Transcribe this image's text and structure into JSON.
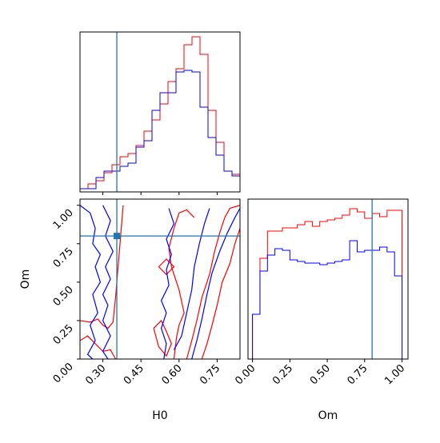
{
  "chart_data": [
    {
      "type": "line",
      "panel": "H0 marginal histogram (step)",
      "xlim": [
        0.21,
        0.84
      ],
      "x_bins": [
        0.21,
        0.2415,
        0.273,
        0.3045,
        0.336,
        0.3675,
        0.399,
        0.4305,
        0.462,
        0.4935,
        0.525,
        0.5565,
        0.588,
        0.6195,
        0.651,
        0.6825,
        0.714,
        0.7455,
        0.777,
        0.8085,
        0.84
      ],
      "series": [
        {
          "color": "#ff0000",
          "values": [
            0.02,
            0.05,
            0.07,
            0.12,
            0.17,
            0.22,
            0.24,
            0.29,
            0.38,
            0.45,
            0.55,
            0.69,
            0.77,
            0.92,
            0.97,
            0.86,
            0.51,
            0.31,
            0.13,
            0.11
          ]
        },
        {
          "color": "#0000ff",
          "values": [
            0.02,
            0.02,
            0.09,
            0.13,
            0.13,
            0.16,
            0.18,
            0.28,
            0.32,
            0.51,
            0.62,
            0.62,
            0.75,
            0.76,
            0.75,
            0.53,
            0.34,
            0.23,
            0.13,
            0.1
          ]
        }
      ],
      "truth_line_x": 0.355,
      "grid": false
    },
    {
      "type": "line",
      "panel": "Om marginal histogram (step)",
      "xlim": [
        -0.03,
        1.04
      ],
      "xticks": [
        "0.00",
        "0.25",
        "0.50",
        "0.75",
        "1.00"
      ],
      "x_bins": [
        0.0,
        0.05,
        0.1,
        0.15,
        0.2,
        0.25,
        0.3,
        0.35,
        0.4,
        0.45,
        0.5,
        0.55,
        0.6,
        0.65,
        0.7,
        0.75,
        0.8,
        0.85,
        0.9,
        0.95,
        1.0
      ],
      "series": [
        {
          "color": "#ff0000",
          "values": [
            0.28,
            0.63,
            0.8,
            0.8,
            0.82,
            0.82,
            0.84,
            0.86,
            0.83,
            0.86,
            0.87,
            0.88,
            0.9,
            0.94,
            0.92,
            0.88,
            0.91,
            0.89,
            0.93,
            0.93
          ]
        },
        {
          "color": "#0000ff",
          "values": [
            0.28,
            0.55,
            0.65,
            0.69,
            0.68,
            0.62,
            0.61,
            0.6,
            0.6,
            0.59,
            0.6,
            0.61,
            0.62,
            0.74,
            0.67,
            0.68,
            0.68,
            0.7,
            0.67,
            0.52
          ]
        }
      ],
      "truth_line_x": 0.8,
      "xlabel": "Om",
      "grid": false
    },
    {
      "type": "scatter",
      "panel": "H0 vs Om 2D contour",
      "xlim": [
        0.21,
        0.84
      ],
      "ylim": [
        0.0,
        1.04
      ],
      "xticks": [
        "0.30",
        "0.45",
        "0.60",
        "0.75"
      ],
      "yticks": [
        "0.00",
        "0.25",
        "0.50",
        "0.75",
        "1.00"
      ],
      "xlabel": "H0",
      "ylabel": "Om",
      "truth_point": {
        "x": 0.355,
        "y": 0.8
      },
      "contours": [
        {
          "color": "#ff0000",
          "points": [
            [
              0.21,
              0.25
            ],
            [
              0.25,
              0.24
            ],
            [
              0.28,
              0.26
            ],
            [
              0.3,
              0.22
            ],
            [
              0.32,
              0.2
            ],
            [
              0.34,
              0.24
            ],
            [
              0.35,
              0.4
            ],
            [
              0.36,
              0.6
            ],
            [
              0.37,
              0.8
            ],
            [
              0.38,
              1.0
            ]
          ]
        },
        {
          "color": "#ff0000",
          "points": [
            [
              0.21,
              0.12
            ],
            [
              0.24,
              0.15
            ],
            [
              0.27,
              0.1
            ],
            [
              0.3,
              0.05
            ],
            [
              0.33,
              0.06
            ],
            [
              0.35,
              0.0
            ]
          ]
        },
        {
          "color": "#ff0000",
          "points": [
            [
              0.58,
              0.0
            ],
            [
              0.59,
              0.14
            ],
            [
              0.6,
              0.22
            ],
            [
              0.62,
              0.3
            ],
            [
              0.6,
              0.45
            ],
            [
              0.57,
              0.6
            ],
            [
              0.56,
              0.72
            ],
            [
              0.58,
              0.85
            ],
            [
              0.6,
              0.95
            ],
            [
              0.63,
              0.97
            ],
            [
              0.66,
              0.92
            ]
          ]
        },
        {
          "color": "#ff0000",
          "points": [
            [
              0.63,
              0.0
            ],
            [
              0.65,
              0.12
            ],
            [
              0.67,
              0.25
            ],
            [
              0.69,
              0.4
            ],
            [
              0.72,
              0.55
            ],
            [
              0.74,
              0.7
            ],
            [
              0.76,
              0.82
            ],
            [
              0.78,
              0.92
            ],
            [
              0.8,
              0.98
            ],
            [
              0.84,
              1.0
            ]
          ]
        },
        {
          "color": "#ff0000",
          "points": [
            [
              0.69,
              0.0
            ],
            [
              0.71,
              0.1
            ],
            [
              0.73,
              0.22
            ],
            [
              0.75,
              0.35
            ],
            [
              0.77,
              0.5
            ],
            [
              0.8,
              0.62
            ],
            [
              0.82,
              0.75
            ],
            [
              0.84,
              0.85
            ]
          ]
        },
        {
          "color": "#ff0000",
          "points": [
            [
              0.5,
              0.2
            ],
            [
              0.53,
              0.25
            ],
            [
              0.55,
              0.18
            ],
            [
              0.57,
              0.1
            ],
            [
              0.55,
              0.02
            ],
            [
              0.52,
              0.08
            ],
            [
              0.5,
              0.2
            ]
          ]
        },
        {
          "color": "#ff0000",
          "points": [
            [
              0.52,
              0.6
            ],
            [
              0.55,
              0.65
            ],
            [
              0.58,
              0.6
            ],
            [
              0.55,
              0.55
            ],
            [
              0.52,
              0.6
            ]
          ]
        },
        {
          "color": "#0000ff",
          "points": [
            [
              0.21,
              1.0
            ],
            [
              0.25,
              0.95
            ],
            [
              0.27,
              0.85
            ],
            [
              0.26,
              0.75
            ],
            [
              0.29,
              0.68
            ],
            [
              0.27,
              0.6
            ],
            [
              0.29,
              0.5
            ],
            [
              0.26,
              0.42
            ],
            [
              0.28,
              0.3
            ],
            [
              0.25,
              0.22
            ],
            [
              0.27,
              0.12
            ],
            [
              0.24,
              0.03
            ],
            [
              0.26,
              0.0
            ]
          ]
        },
        {
          "color": "#0000ff",
          "points": [
            [
              0.3,
              1.0
            ],
            [
              0.33,
              0.9
            ],
            [
              0.31,
              0.8
            ],
            [
              0.34,
              0.7
            ],
            [
              0.31,
              0.6
            ],
            [
              0.33,
              0.52
            ],
            [
              0.3,
              0.42
            ],
            [
              0.32,
              0.35
            ],
            [
              0.3,
              0.25
            ],
            [
              0.33,
              0.15
            ],
            [
              0.3,
              0.05
            ],
            [
              0.32,
              0.0
            ]
          ]
        },
        {
          "color": "#0000ff",
          "points": [
            [
              0.54,
              0.0
            ],
            [
              0.55,
              0.1
            ],
            [
              0.53,
              0.2
            ],
            [
              0.55,
              0.3
            ],
            [
              0.53,
              0.38
            ],
            [
              0.56,
              0.48
            ],
            [
              0.55,
              0.58
            ],
            [
              0.57,
              0.68
            ],
            [
              0.55,
              0.78
            ],
            [
              0.58,
              0.88
            ],
            [
              0.56,
              0.98
            ]
          ]
        },
        {
          "color": "#0000ff",
          "points": [
            [
              0.58,
              0.06
            ],
            [
              0.61,
              0.15
            ],
            [
              0.63,
              0.3
            ],
            [
              0.65,
              0.45
            ],
            [
              0.66,
              0.6
            ],
            [
              0.68,
              0.75
            ],
            [
              0.7,
              0.88
            ],
            [
              0.72,
              0.98
            ]
          ]
        },
        {
          "color": "#0000ff",
          "points": [
            [
              0.65,
              0.0
            ],
            [
              0.67,
              0.12
            ],
            [
              0.69,
              0.26
            ],
            [
              0.71,
              0.42
            ],
            [
              0.73,
              0.56
            ],
            [
              0.76,
              0.7
            ],
            [
              0.79,
              0.82
            ],
            [
              0.82,
              0.92
            ],
            [
              0.84,
              0.98
            ]
          ]
        }
      ],
      "grid": false
    }
  ]
}
